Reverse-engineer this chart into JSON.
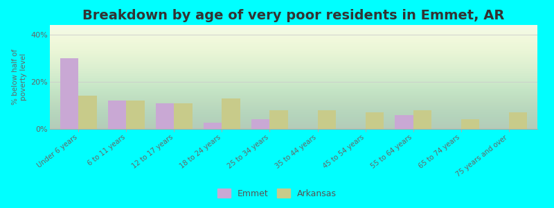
{
  "title": "Breakdown by age of very poor residents in Emmet, AR",
  "ylabel": "% below half of\npoverty level",
  "categories": [
    "Under 6 years",
    "6 to 11 years",
    "12 to 17 years",
    "18 to 24 years",
    "25 to 34 years",
    "35 to 44 years",
    "45 to 54 years",
    "55 to 64 years",
    "65 to 74 years",
    "75 years and over"
  ],
  "emmet_values": [
    30,
    12,
    11,
    2.5,
    4,
    0,
    0,
    6,
    0,
    0
  ],
  "arkansas_values": [
    14,
    12,
    11,
    13,
    8,
    8,
    7,
    8,
    4,
    7
  ],
  "emmet_color": "#c9a8d4",
  "arkansas_color": "#c8cb8a",
  "background_color": "#00ffff",
  "ylim": [
    0,
    44
  ],
  "yticks": [
    0,
    20,
    40
  ],
  "ytick_labels": [
    "0%",
    "20%",
    "40%"
  ],
  "title_fontsize": 14,
  "legend_labels": [
    "Emmet",
    "Arkansas"
  ],
  "bar_width": 0.38,
  "grid_color": "#cccccc"
}
